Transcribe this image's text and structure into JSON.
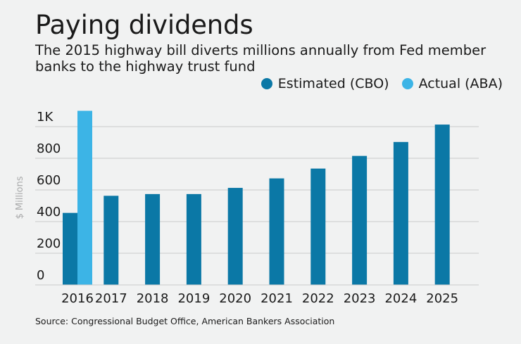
{
  "header": {
    "title": "Paying dividends",
    "subtitle": "The 2015 highway bill diverts millions annually from Fed member banks to the highway trust fund"
  },
  "source": "Source: Congressional Budget Office, American Bankers Association",
  "colors": {
    "estimated": "#0b78a6",
    "actual": "#3cb4e6",
    "grid": "#c9cacb",
    "background": "#f1f2f2"
  },
  "chart_data": {
    "type": "bar",
    "categories": [
      "2016",
      "2017",
      "2018",
      "2019",
      "2020",
      "2021",
      "2022",
      "2023",
      "2024",
      "2025"
    ],
    "series": [
      {
        "name": "Estimated (CBO)",
        "values": [
          455,
          563,
          574,
          574,
          613,
          673,
          735,
          815,
          903,
          1013
        ]
      },
      {
        "name": "Actual (ABA)",
        "values": [
          1100,
          null,
          null,
          null,
          null,
          null,
          null,
          null,
          null,
          null
        ]
      }
    ],
    "ylabel": "$ Millions",
    "ylim": [
      0,
      1000
    ],
    "yticks": [
      {
        "value": 0,
        "label": "0"
      },
      {
        "value": 200,
        "label": "200"
      },
      {
        "value": 400,
        "label": "400"
      },
      {
        "value": 600,
        "label": "600"
      },
      {
        "value": 800,
        "label": "800"
      },
      {
        "value": 1000,
        "label": "1K"
      }
    ],
    "grid": true,
    "legend_position": "top-right"
  }
}
